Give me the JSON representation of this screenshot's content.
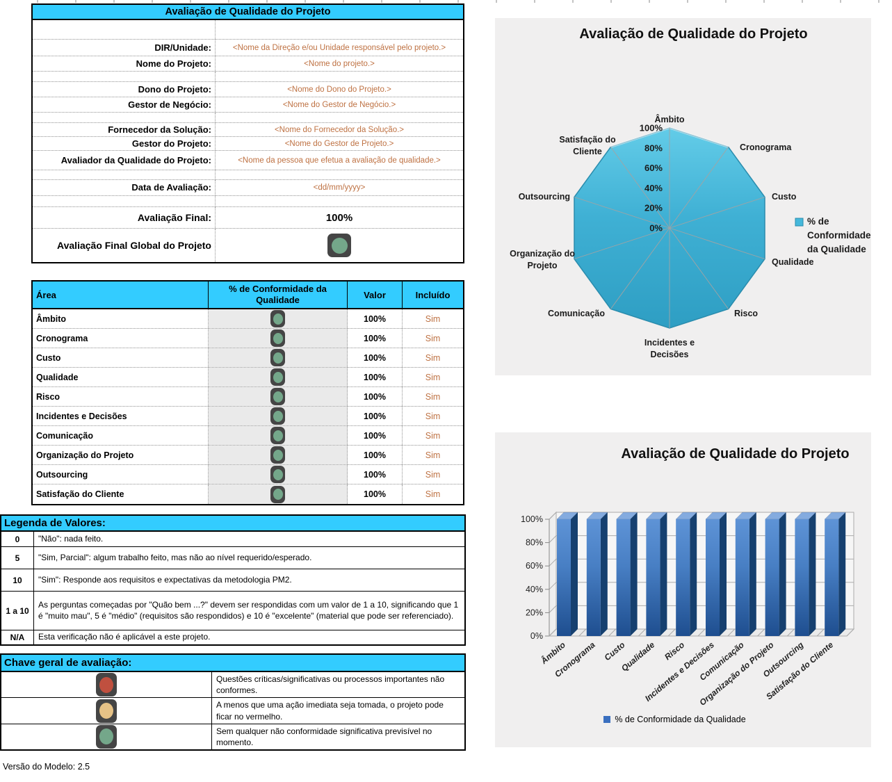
{
  "form": {
    "title": "Avaliação de Qualidade do Projeto",
    "rows": [
      {
        "kind": "spacer",
        "label": "",
        "value": ""
      },
      {
        "kind": "field",
        "label": "DIR/Unidade:",
        "value": "<Nome da Direção e/ou Unidade responsável pelo projeto.>"
      },
      {
        "kind": "field",
        "label": "Nome do Projeto:",
        "value": "<Nome do projeto.>"
      },
      {
        "kind": "spacer",
        "label": "",
        "value": ""
      },
      {
        "kind": "field",
        "label": "Dono do Projeto:",
        "value": "<Nome do Dono do Projeto.>"
      },
      {
        "kind": "field",
        "label": "Gestor de Negócio:",
        "value": "<Nome do Gestor de Negócio.>"
      },
      {
        "kind": "spacer",
        "label": "",
        "value": ""
      },
      {
        "kind": "field",
        "label": "Fornecedor da Solução:",
        "value": "<Nome do Fornecedor da Solução.>"
      },
      {
        "kind": "field",
        "label": "Gestor do Projeto:",
        "value": "<Nome do Gestor de Projeto.>"
      },
      {
        "kind": "field",
        "label": "Avaliador da Qualidade do Projeto:",
        "value": "<Nome da pessoa que efetua a avaliação de qualidade.>"
      },
      {
        "kind": "spacer",
        "label": "",
        "value": ""
      },
      {
        "kind": "field",
        "label": "Data de Avaliação:",
        "value": "<dd/mm/yyyy>"
      },
      {
        "kind": "spacer",
        "label": "",
        "value": ""
      },
      {
        "kind": "final",
        "label": "Avaliação Final:",
        "value": "100%"
      },
      {
        "kind": "global",
        "label": "Avaliação Final Global do Projeto",
        "value": "green"
      }
    ]
  },
  "area_table": {
    "headers": [
      "Área",
      "% de Conformidade da Qualidade",
      "Valor",
      "Incluído"
    ],
    "rows": [
      {
        "area": "Âmbito",
        "light": "green",
        "valor": "100%",
        "incluido": "Sim"
      },
      {
        "area": "Cronograma",
        "light": "green",
        "valor": "100%",
        "incluido": "Sim"
      },
      {
        "area": "Custo",
        "light": "green",
        "valor": "100%",
        "incluido": "Sim"
      },
      {
        "area": "Qualidade",
        "light": "green",
        "valor": "100%",
        "incluido": "Sim"
      },
      {
        "area": "Risco",
        "light": "green",
        "valor": "100%",
        "incluido": "Sim"
      },
      {
        "area": "Incidentes e Decisões",
        "light": "green",
        "valor": "100%",
        "incluido": "Sim"
      },
      {
        "area": "Comunicação",
        "light": "green",
        "valor": "100%",
        "incluido": "Sim"
      },
      {
        "area": "Organização do Projeto",
        "light": "green",
        "valor": "100%",
        "incluido": "Sim"
      },
      {
        "area": "Outsourcing",
        "light": "green",
        "valor": "100%",
        "incluido": "Sim"
      },
      {
        "area": "Satisfação do Cliente",
        "light": "green",
        "valor": "100%",
        "incluido": "Sim"
      }
    ]
  },
  "legend_values": {
    "title": "Legenda de Valores:",
    "rows": [
      {
        "key": "0",
        "text": "\"Não\": nada feito."
      },
      {
        "key": "5",
        "text": "\"Sim, Parcial\": algum trabalho feito, mas não ao nível requerido/esperado."
      },
      {
        "key": "10",
        "text": "\"Sim\": Responde aos requisitos e expectativas da metodologia PM2."
      },
      {
        "key": "1 a 10",
        "text": "As perguntas começadas por \"Quão bem ...?\" devem ser respondidas com um valor de 1 a 10, significando que 1 é \"muito mau\", 5 é \"médio\" (requisitos são respondidos) e 10 é \"excelente\" (material que pode ser referenciado)."
      },
      {
        "key": "N/A",
        "text": "Esta verificação não é aplicável a este projeto."
      }
    ]
  },
  "rating_key": {
    "title": "Chave geral de avaliação:",
    "rows": [
      {
        "light": "red",
        "text": "Questões críticas/significativas ou processos importantes não conformes."
      },
      {
        "light": "yellow",
        "text": "A menos que uma ação imediata seja tomada, o projeto pode ficar no vermelho."
      },
      {
        "light": "green",
        "text": "Sem qualquer não conformidade significativa previsível no momento."
      }
    ]
  },
  "footer": {
    "version": "Versão do Modelo: 2.5"
  },
  "chart_data": [
    {
      "type": "radar",
      "title": "Avaliação de Qualidade do Projeto",
      "categories": [
        "Âmbito",
        "Cronograma",
        "Custo",
        "Qualidade",
        "Risco",
        "Incidentes e Decisões",
        "Comunicação",
        "Organização do Projeto",
        "Outsourcing",
        "Satisfação do Cliente"
      ],
      "series": [
        {
          "name": "% de Conformidade da  Qualidade",
          "values": [
            100,
            100,
            100,
            100,
            100,
            100,
            100,
            100,
            100,
            100
          ]
        }
      ],
      "ticks": [
        "100%",
        "80%",
        "60%",
        "40%",
        "20%",
        "0%"
      ],
      "tick_values": [
        100,
        80,
        60,
        40,
        20,
        0
      ],
      "rlim": [
        0,
        100
      ],
      "legend_position": "right",
      "grid": "spokes"
    },
    {
      "type": "bar",
      "title": "Avaliação de Qualidade do Projeto",
      "categories": [
        "Âmbito",
        "Cronograma",
        "Custo",
        "Qualidade",
        "Risco",
        "Incidentes e Decisões",
        "Comunicação",
        "Organização do Projeto",
        "Outsourcing",
        "Satisfação do Cliente"
      ],
      "series": [
        {
          "name": "% de Conformidade da  Qualidade",
          "values": [
            100,
            100,
            100,
            100,
            100,
            100,
            100,
            100,
            100,
            100
          ]
        }
      ],
      "ticks": [
        "0%",
        "20%",
        "40%",
        "60%",
        "80%",
        "100%"
      ],
      "tick_values": [
        0,
        20,
        40,
        60,
        80,
        100
      ],
      "ylim": [
        0,
        100
      ],
      "legend_position": "bottom",
      "grid": true,
      "style": "3d-column"
    }
  ],
  "colors": {
    "cyan_header": "#33CCFF",
    "orange_text": "#BE7142",
    "panel_bg": "#F0EFEF",
    "table_gray_cell": "#EAEAEA",
    "radar_fill_top": "#63CCE8",
    "radar_fill_bottom": "#2E9EC3",
    "radar_stroke": "#2A8CAD",
    "spoke_gray": "#A3A3A3",
    "bar_front_top": "#5E93D6",
    "bar_front_bottom": "#1E4E8F",
    "bar_side": "#16406F",
    "bar_top": "#84ABDF",
    "bar_legend_swatch": "#3A6FBF",
    "light_green": "#74A78A",
    "light_red": "#C0503F",
    "light_yellow": "#E6C286",
    "light_frame": "#454545"
  }
}
